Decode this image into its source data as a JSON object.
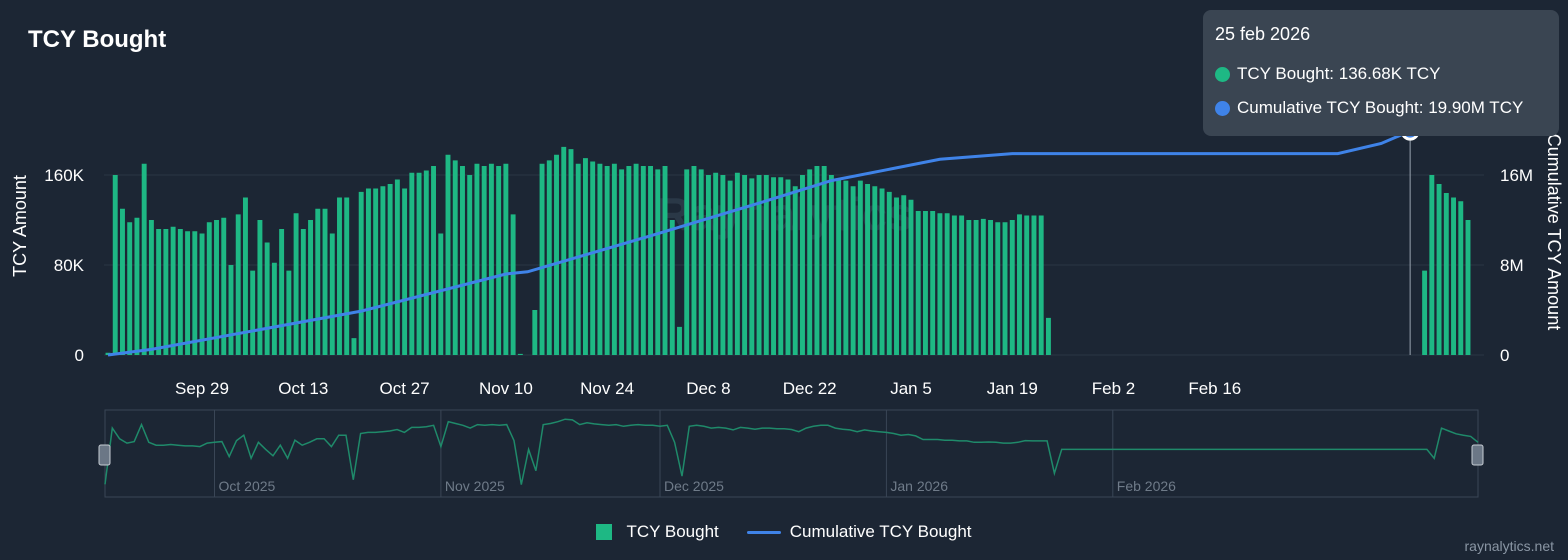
{
  "header": {
    "title": "TCY Bought"
  },
  "brand": "raynalytics.net",
  "watermark": "Raynalytics",
  "colors": {
    "bar": "#1eb884",
    "line": "#3f83e8",
    "navigator": "#1f8a6a",
    "background": "#1c2634"
  },
  "tooltip": {
    "date": "25 feb 2026",
    "rows": [
      {
        "label": "TCY Bought: 136.68K TCY",
        "color": "#1eb884"
      },
      {
        "label": "Cumulative TCY Bought: 19.90M TCY",
        "color": "#3f83e8"
      }
    ]
  },
  "legend": {
    "bars": "TCY Bought",
    "line": "Cumulative TCY Bought"
  },
  "navigator": {
    "labels": [
      "Oct 2025",
      "Nov 2025",
      "Dec 2025",
      "Jan 2026",
      "Feb 2026"
    ]
  },
  "chart_data": {
    "type": "bar",
    "title": "TCY Bought",
    "ylabel": "TCY Amount",
    "y2label": "Cumulative TCY Amount",
    "ylim": [
      0,
      200000
    ],
    "y2lim": [
      0,
      20000000
    ],
    "yticks": [
      "0",
      "80K",
      "160K"
    ],
    "y2ticks": [
      "0",
      "8M",
      "16M"
    ],
    "xticks": [
      "Sep 29",
      "Oct 13",
      "Oct 27",
      "Nov 10",
      "Nov 24",
      "Dec 8",
      "Dec 22",
      "Jan 5",
      "Jan 19",
      "Feb 2",
      "Feb 16"
    ],
    "start_date": "2025-09-16",
    "series": [
      {
        "name": "TCY Bought",
        "type": "bar",
        "values": [
          2000,
          160000,
          130000,
          118000,
          122000,
          170000,
          120000,
          112000,
          112000,
          114000,
          112000,
          110000,
          110000,
          108000,
          118000,
          120000,
          122000,
          80000,
          125000,
          140000,
          75000,
          120000,
          100000,
          82000,
          112000,
          75000,
          126000,
          112000,
          120000,
          130000,
          130000,
          108000,
          140000,
          140000,
          15000,
          145000,
          148000,
          148000,
          150000,
          152000,
          156000,
          148000,
          162000,
          162000,
          164000,
          168000,
          108000,
          178000,
          173000,
          168000,
          160000,
          170000,
          168000,
          170000,
          168000,
          170000,
          125000,
          1000,
          0,
          40000,
          170000,
          173000,
          178000,
          185000,
          183000,
          170000,
          175000,
          172000,
          170000,
          168000,
          170000,
          165000,
          168000,
          170000,
          168000,
          168000,
          165000,
          168000,
          120000,
          25000,
          165000,
          168000,
          165000,
          160000,
          162000,
          160000,
          155000,
          162000,
          160000,
          157000,
          160000,
          160000,
          158000,
          158000,
          156000,
          150000,
          160000,
          165000,
          168000,
          168000,
          160000,
          157000,
          155000,
          150000,
          155000,
          152000,
          150000,
          148000,
          145000,
          140000,
          142000,
          138000,
          128000,
          128000,
          128000,
          126000,
          126000,
          124000,
          124000,
          120000,
          120000,
          121000,
          120000,
          118000,
          118000,
          120000,
          125000,
          124000,
          124000,
          124000,
          33000,
          0,
          0,
          0,
          0,
          0,
          0,
          0,
          0,
          0,
          0,
          0,
          0,
          0,
          0,
          0,
          0,
          0,
          0,
          0,
          0,
          0,
          0,
          0,
          0,
          0,
          0,
          0,
          0,
          0,
          0,
          0,
          0,
          0,
          0,
          0,
          0,
          0,
          0,
          0,
          0,
          0,
          0,
          0,
          0,
          0,
          0,
          0,
          0,
          0,
          0,
          0,
          75000,
          160000,
          152000,
          144000,
          140000,
          136680,
          120000
        ]
      },
      {
        "name": "Cumulative TCY Bought",
        "type": "line",
        "points": [
          [
            0,
            0
          ],
          [
            6,
            500000
          ],
          [
            35,
            3900000
          ],
          [
            55,
            7200000
          ],
          [
            58,
            7400000
          ],
          [
            75,
            10600000
          ],
          [
            90,
            13500000
          ],
          [
            100,
            15500000
          ],
          [
            115,
            17400000
          ],
          [
            125,
            17900000
          ],
          [
            170,
            17900000
          ],
          [
            176,
            18800000
          ],
          [
            180,
            19900000
          ]
        ]
      }
    ]
  }
}
